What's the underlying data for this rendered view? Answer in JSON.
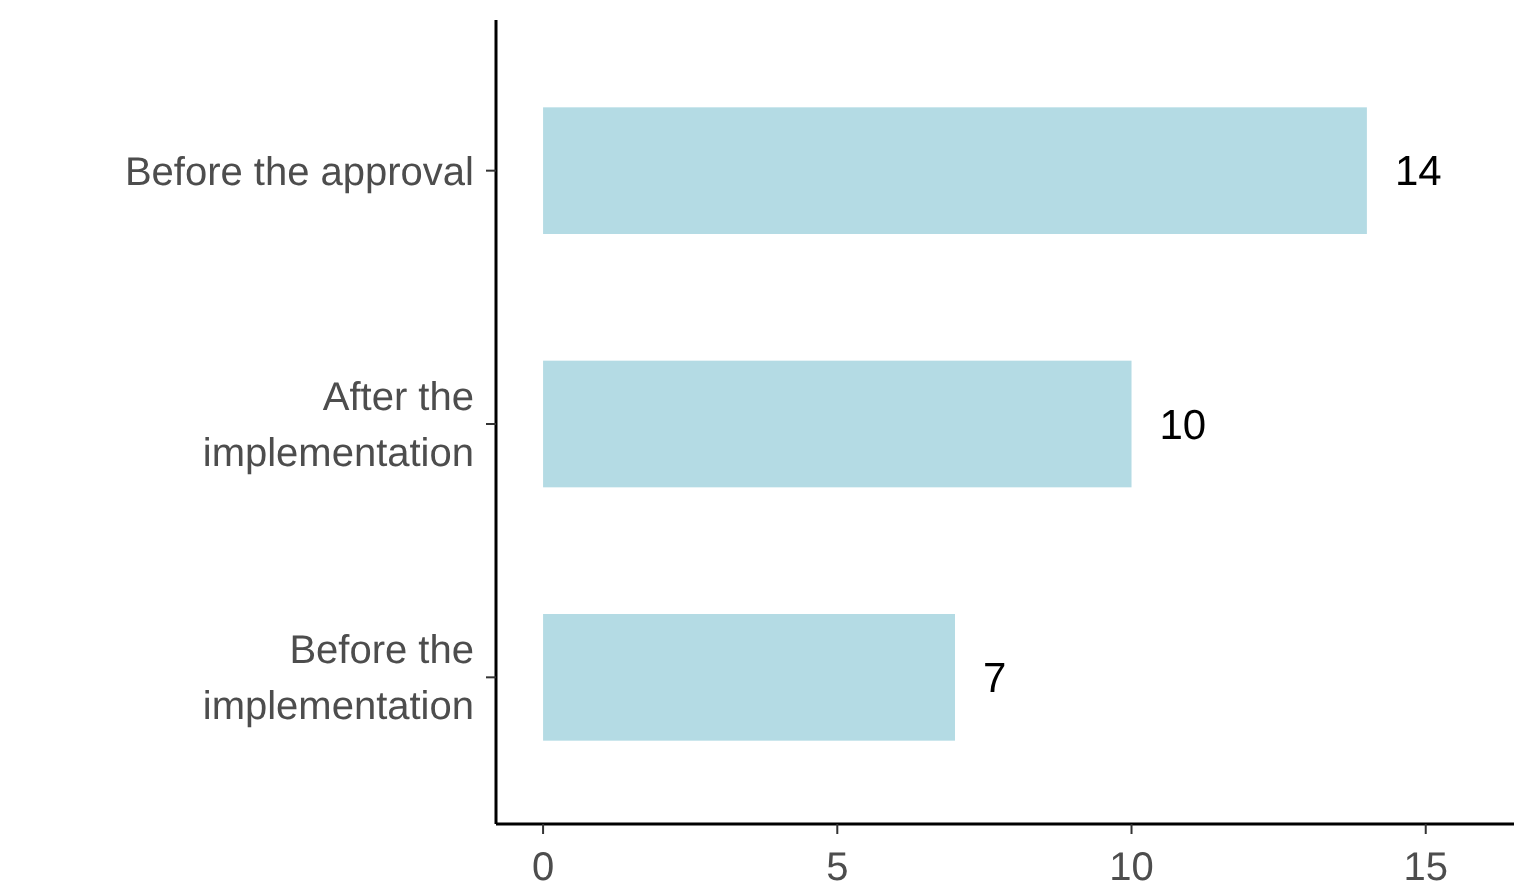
{
  "chart_data": {
    "type": "bar",
    "orientation": "horizontal",
    "categories": [
      "Before the approval",
      "After the implementation",
      "Before the implementation"
    ],
    "values": [
      14,
      10,
      7
    ],
    "color": "#b4dbe4",
    "xlim": [
      -0.8,
      16.5
    ],
    "xticks": [
      0,
      5,
      10,
      15
    ],
    "data_labels": true,
    "grid": false
  }
}
